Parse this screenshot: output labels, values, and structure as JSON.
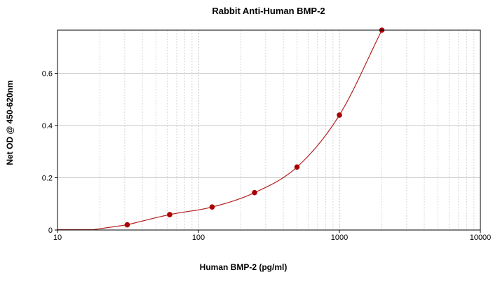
{
  "chart_data": {
    "type": "scatter",
    "title": "Rabbit Anti-Human BMP-2",
    "xlabel": "Human BMP-2 (pg/ml)",
    "ylabel": "Net OD @ 450-620nm",
    "x_scale": "log",
    "xlim": [
      10,
      10000
    ],
    "ylim": [
      0,
      0.765
    ],
    "x_ticks": [
      10,
      100,
      1000,
      10000
    ],
    "x_tick_labels": [
      "10",
      "100",
      "1000",
      "10000"
    ],
    "y_ticks": [
      0,
      0.2,
      0.4,
      0.6
    ],
    "y_tick_labels": [
      "0",
      "0.2",
      "0.4",
      "0.6"
    ],
    "grid": true,
    "series": [
      {
        "points": [
          {
            "x": 31.25,
            "y": 0.02
          },
          {
            "x": 62.5,
            "y": 0.059
          },
          {
            "x": 125,
            "y": 0.088
          },
          {
            "x": 250,
            "y": 0.143
          },
          {
            "x": 500,
            "y": 0.241
          },
          {
            "x": 1000,
            "y": 0.44
          },
          {
            "x": 2000,
            "y": 0.765
          }
        ],
        "fit_curve": {
          "type": "curve",
          "from_x": 10,
          "to_x": 2000
        },
        "marker_color": "#aa0000",
        "line_color": "#b22222"
      }
    ]
  }
}
